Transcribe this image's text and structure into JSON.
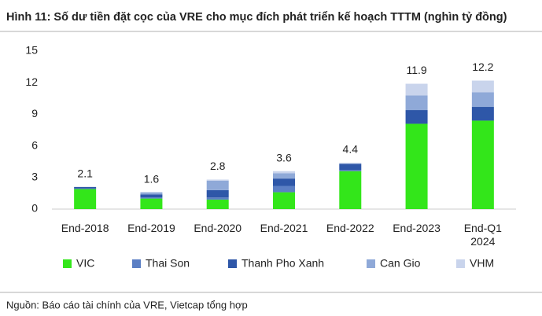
{
  "chart_data": {
    "type": "stacked_bar",
    "title": "Hình 11: Số dư tiền đặt cọc của VRE cho mục đích phát triển kế hoạch TTTM (nghìn tỷ đồng)",
    "categories": [
      "End-2018",
      "End-2019",
      "End-2020",
      "End-2021",
      "End-2022",
      "End-2023",
      "End-Q1\n2024"
    ],
    "series": [
      {
        "name": "VIC",
        "color": "#33e61a",
        "values": [
          1.9,
          1.0,
          0.9,
          1.6,
          3.6,
          8.1,
          8.4
        ]
      },
      {
        "name": "Thai Son",
        "color": "#5b7fc4",
        "values": [
          0.05,
          0.1,
          0.2,
          0.6,
          0.1,
          0,
          0
        ]
      },
      {
        "name": "Thanh Pho Xanh",
        "color": "#2e57a8",
        "values": [
          0.15,
          0.3,
          0.7,
          0.7,
          0.6,
          1.3,
          1.3
        ]
      },
      {
        "name": "Can Gio",
        "color": "#8fa9d8",
        "values": [
          0,
          0.2,
          0.9,
          0.5,
          0,
          1.4,
          1.4
        ]
      },
      {
        "name": "VHM",
        "color": "#c9d4ec",
        "values": [
          0,
          0,
          0.1,
          0.2,
          0.1,
          1.1,
          1.1
        ]
      }
    ],
    "totals": [
      2.1,
      1.6,
      2.8,
      3.6,
      4.4,
      11.9,
      12.2
    ],
    "ylim": [
      0,
      15
    ],
    "yticks": [
      0,
      3,
      6,
      9,
      12,
      15
    ],
    "grid": false,
    "legend": "bottom",
    "source": "Nguồn: Báo cáo tài chính của VRE, Vietcap tổng hợp"
  }
}
